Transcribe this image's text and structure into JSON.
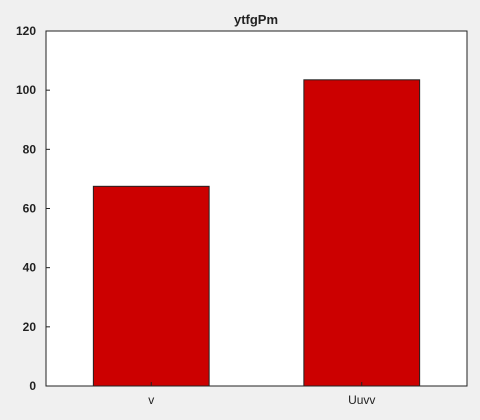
{
  "chart_data": {
    "type": "bar",
    "title": "ytfgPm",
    "xlabel": "",
    "ylabel": "",
    "categories": [
      "v",
      "Uuvv"
    ],
    "values": [
      67.5,
      103.5
    ],
    "ylim": [
      0,
      120
    ],
    "yticks": [
      0,
      20,
      40,
      60,
      80,
      100,
      120
    ],
    "bar_color": "#cc0000",
    "bar_edge_color": "#222222",
    "plot_bg": "#ffffff",
    "figure_bg": "#f0f0f0",
    "grid": false
  }
}
